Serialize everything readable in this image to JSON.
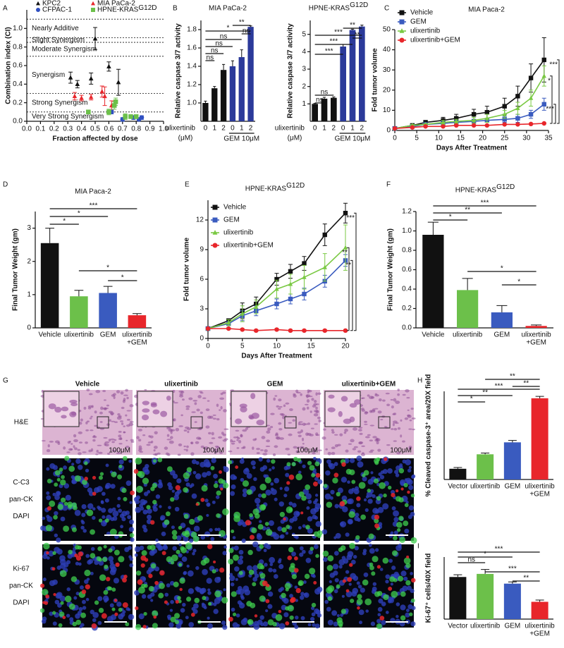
{
  "chart_data": [
    {
      "panel": "A",
      "type": "scatter",
      "xlabel": "Fraction affected by dose",
      "ylabel": "Combination index (CI)",
      "xlim": [
        0,
        1
      ],
      "ylim": [
        0,
        1.2
      ],
      "xticks": [
        {
          "value": 0,
          "label": "0.0"
        },
        0.1,
        0.2,
        0.3,
        0.4,
        0.5,
        0.6,
        0.7,
        0.8,
        0.9,
        {
          "value": 1,
          "label": "1.0"
        }
      ],
      "yticks": [
        {
          "value": 0,
          "label": "0.0"
        },
        0.2,
        0.4,
        0.6,
        0.8,
        {
          "value": 1,
          "label": "1.0"
        }
      ],
      "ref_lines": [
        1.1,
        0.9,
        0.85,
        0.7,
        0.3,
        0.1
      ],
      "ref_labels": [
        "Nearly Additive",
        "Slight Synergism",
        "Moderate Synergism",
        "Synergism",
        "Strong Synergism",
        "Very Strong Synergism"
      ],
      "series": [
        {
          "name": "KPC2",
          "color": "#111111",
          "marker": "triangle",
          "x": [
            0.32,
            0.37,
            0.47,
            0.5,
            0.6,
            0.67
          ],
          "values": [
            0.47,
            0.4,
            0.46,
            0.89,
            0.59,
            0.42
          ],
          "yerr": [
            0.06,
            0.04,
            0.06,
            0.12,
            0.05,
            0.14
          ]
        },
        {
          "name": "MIA PaCa-2",
          "color": "#e8262b",
          "marker": "triangle",
          "x": [
            0.35,
            0.4,
            0.47,
            0.55,
            0.57,
            0.62
          ],
          "values": [
            0.27,
            0.25,
            0.26,
            0.32,
            0.27,
            0.17
          ],
          "yerr": [
            0.04,
            0.03,
            0.03,
            0.06,
            0.1,
            0.05
          ]
        },
        {
          "name": "CFPAC-1",
          "color": "#2f4fc0",
          "marker": "circle",
          "x": [
            0.62,
            0.7,
            0.78,
            0.82,
            0.84
          ],
          "values": [
            0.1,
            0.02,
            0.04,
            0.02,
            0.04
          ],
          "yerr": [
            0.02,
            0.02,
            0.02,
            0.01,
            0.02
          ]
        },
        {
          "name": "HPNE-KRAS",
          "name_superscript": "G12D",
          "color": "#6cc04a",
          "marker": "square",
          "x": [
            0.45,
            0.6,
            0.64,
            0.65,
            0.72,
            0.76,
            0.8
          ],
          "values": [
            0.1,
            0.1,
            0.17,
            0.21,
            0.05,
            0.05,
            0.05
          ],
          "yerr": [
            0.02,
            0.03,
            0.04,
            0.04,
            0.03,
            0.02,
            0.02
          ]
        }
      ]
    },
    {
      "panel": "B",
      "type": "bar",
      "title": "MIA PaCa-2",
      "ylabel": "Relative caspase 3/7 activity",
      "xlabel": "ulixertinib",
      "xlabel_unit": "(μM)",
      "group_label": "GEM 10μM",
      "categories": [
        "0",
        "1",
        "2",
        "0",
        "1",
        "2"
      ],
      "values": [
        1.0,
        1.16,
        1.36,
        1.4,
        1.5,
        1.83
      ],
      "yerr": [
        0.02,
        0.02,
        0.06,
        0.06,
        0.08,
        0.01
      ],
      "colors": [
        "#111111",
        "#111111",
        "#111111",
        "#2b3a9a",
        "#2b3a9a",
        "#2b3a9a"
      ],
      "ylim": [
        0.8,
        1.9
      ],
      "yticks": [
        {
          "value": 1,
          "label": "1.0"
        },
        1.2,
        1.4,
        1.6,
        1.8
      ],
      "annotations": [
        "*",
        "ns",
        "ns",
        "ns",
        "ns",
        "**",
        "ns"
      ]
    },
    {
      "type": "bar",
      "title": "HPNE-KRAS",
      "title_superscript": "G12D",
      "ylabel": "Relative caspase 3/7 activity",
      "xlabel": "ulixertinib",
      "xlabel_unit": "(μM)",
      "group_label": "GEM 10μM",
      "categories": [
        "0",
        "1",
        "2",
        "0",
        "1",
        "2"
      ],
      "values": [
        1.0,
        1.3,
        1.35,
        4.3,
        5.25,
        5.45
      ],
      "yerr": [
        0.03,
        0.08,
        0.05,
        0.12,
        0.05,
        0.08
      ],
      "colors": [
        "#111111",
        "#111111",
        "#111111",
        "#2b3a9a",
        "#2b3a9a",
        "#2b3a9a"
      ],
      "ylim": [
        0,
        5.8
      ],
      "yticks": [
        1,
        2,
        3,
        4,
        5
      ],
      "annotations": [
        "***",
        "***",
        "***",
        "**",
        "**",
        "ns",
        "ns"
      ]
    },
    {
      "panel": "C",
      "type": "line",
      "title": "MIA Paca-2",
      "xlabel": "Days After Treatment",
      "ylabel": "Fold tumor volume",
      "xlim": [
        0,
        35
      ],
      "ylim": [
        0,
        50
      ],
      "xticks": [
        0,
        5,
        10,
        15,
        20,
        25,
        30,
        35
      ],
      "yticks": [
        0,
        10,
        20,
        30,
        40,
        50
      ],
      "x": [
        0,
        4,
        7,
        11,
        14,
        18,
        21,
        25,
        28,
        31,
        34
      ],
      "series": [
        {
          "name": "Vehicle",
          "color": "#111111",
          "marker": "square",
          "values": [
            1,
            2.5,
            4,
            5,
            6,
            8,
            9,
            12,
            17,
            26,
            35
          ],
          "yerr": [
            0,
            0.5,
            1,
            1.5,
            2,
            2.5,
            3,
            4,
            5,
            7,
            11
          ]
        },
        {
          "name": "GEM",
          "color": "#3a5bbf",
          "marker": "square",
          "values": [
            1,
            2,
            3,
            3.5,
            4,
            4.5,
            5,
            5.5,
            6,
            8,
            13
          ],
          "yerr": [
            0,
            0.5,
            0.5,
            1,
            1,
            1,
            1,
            1.5,
            2,
            2,
            3
          ]
        },
        {
          "name": "ulixertinib",
          "color": "#7ac943",
          "marker": "triangle",
          "values": [
            1,
            2.5,
            3,
            4,
            4.5,
            5,
            6,
            8,
            11,
            16,
            27
          ],
          "yerr": [
            0,
            0.5,
            0.5,
            1,
            1,
            1.5,
            2,
            2,
            3,
            4,
            5
          ]
        },
        {
          "name": "ulixertinib+GEM",
          "color": "#e8262b",
          "marker": "circle",
          "values": [
            1,
            1.5,
            2,
            2,
            2.5,
            2.5,
            2.5,
            3,
            3,
            3.2,
            3.5
          ],
          "yerr": [
            0,
            0.3,
            0.3,
            0.3,
            0.3,
            0.3,
            0.3,
            0.3,
            0.3,
            0.3,
            0.3
          ]
        }
      ],
      "annotations": [
        "***",
        "***",
        "*"
      ]
    },
    {
      "panel": "D",
      "type": "bar",
      "title": "MIA Paca-2",
      "ylabel": "Final Tumor Weight (gm)",
      "categories": [
        "Vehicle",
        "ulixertinib",
        "GEM",
        [
          "ulixertinib",
          "+GEM"
        ]
      ],
      "values": [
        2.55,
        0.95,
        1.05,
        0.38
      ],
      "yerr": [
        0.45,
        0.18,
        0.2,
        0.05
      ],
      "colors": [
        "#111111",
        "#6cc04a",
        "#3a5bbf",
        "#e8262b"
      ],
      "ylim": [
        0,
        3.5
      ],
      "yticks": [
        0,
        1,
        2,
        3
      ],
      "annotations": [
        "***",
        "*",
        "*",
        "*",
        "*"
      ]
    },
    {
      "panel": "E",
      "type": "line",
      "title": "HPNE-KRAS",
      "title_superscript": "G12D",
      "xlabel": "Days After Treatment",
      "ylabel": "Fold tumor volume",
      "xlim": [
        0,
        20
      ],
      "ylim": [
        0,
        14
      ],
      "xticks": [
        0,
        5,
        10,
        15,
        20
      ],
      "yticks": [
        0,
        3,
        6,
        9,
        12
      ],
      "x": [
        0,
        3,
        5,
        7,
        10,
        12,
        14,
        17,
        20
      ],
      "series": [
        {
          "name": "Vehicle",
          "color": "#111111",
          "marker": "square",
          "values": [
            1,
            1.8,
            2.8,
            3.5,
            6,
            6.8,
            7.6,
            10.5,
            12.7
          ],
          "yerr": [
            0,
            0.2,
            0.8,
            0.7,
            0.6,
            0.7,
            0.7,
            1.1,
            1
          ]
        },
        {
          "name": "GEM",
          "color": "#3a5bbf",
          "marker": "square",
          "values": [
            1,
            1.5,
            2.3,
            2.8,
            3.5,
            4,
            4.5,
            5.8,
            7.9
          ],
          "yerr": [
            0,
            0.2,
            0.5,
            0.5,
            0.5,
            0.5,
            0.6,
            0.6,
            0.6
          ]
        },
        {
          "name": "ulixertinib",
          "color": "#7ac943",
          "marker": "triangle",
          "values": [
            1,
            1.6,
            2.5,
            3.2,
            5,
            5.5,
            6.2,
            7.2,
            9.2
          ],
          "yerr": [
            0,
            0.3,
            0.8,
            0.7,
            0.9,
            1.0,
            1.2,
            1.4,
            2.3
          ]
        },
        {
          "name": "ulixertinib+GEM",
          "color": "#e8262b",
          "marker": "circle",
          "values": [
            1,
            1,
            0.9,
            0.8,
            0.9,
            0.8,
            0.8,
            0.8,
            0.8
          ],
          "yerr": [
            0,
            0.1,
            0.1,
            0.1,
            0.1,
            0.1,
            0.1,
            0.1,
            0.1
          ]
        }
      ],
      "annotations": [
        "***",
        "**",
        "**"
      ]
    },
    {
      "panel": "F",
      "type": "bar",
      "title": "HPNE-KRAS",
      "title_superscript": "G12D",
      "ylabel": "Final Tumor Weight  (gm)",
      "categories": [
        "Vehicle",
        "ulixertinib",
        "GEM",
        [
          "ulixertinib",
          "+GEM"
        ]
      ],
      "values": [
        0.96,
        0.39,
        0.16,
        0.02
      ],
      "yerr": [
        0.13,
        0.12,
        0.07,
        0.01
      ],
      "colors": [
        "#111111",
        "#6cc04a",
        "#3a5bbf",
        "#e8262b"
      ],
      "ylim": [
        0,
        1.2
      ],
      "yticks": [
        {
          "value": 0,
          "label": "0.0"
        },
        0.2,
        0.4,
        0.6,
        0.8,
        {
          "value": 1,
          "label": "1.0"
        },
        1.2
      ],
      "annotations": [
        "***",
        "**",
        "*",
        "*",
        "*"
      ]
    },
    {
      "panel": "H",
      "type": "bar",
      "ylabel": "% Cleaved caspase-3⁺ area/20X field",
      "categories": [
        "Vector",
        "ulixertinib",
        "GEM",
        [
          "ulixertinib",
          "+GEM"
        ]
      ],
      "values": [
        0.17,
        0.4,
        0.59,
        1.29
      ],
      "yerr": [
        0.02,
        0.02,
        0.03,
        0.03
      ],
      "colors": [
        "#111111",
        "#6cc04a",
        "#3a5bbf",
        "#e8262b"
      ],
      "ylim": [
        0,
        1.4
      ],
      "annotations": [
        "***",
        "**",
        "*",
        "**",
        "**"
      ]
    },
    {
      "panel": "I",
      "type": "bar",
      "ylabel": "Ki-67⁺ cells/40X field",
      "categories": [
        "Vector",
        "ulixertinib",
        "GEM",
        [
          "ulixertinib",
          "+GEM"
        ]
      ],
      "values": [
        95,
        102,
        80,
        39
      ],
      "yerr": [
        5,
        10,
        4,
        4
      ],
      "colors": [
        "#111111",
        "#6cc04a",
        "#3a5bbf",
        "#e8262b"
      ],
      "ylim": [
        0,
        140
      ],
      "annotations": [
        "***",
        "*",
        "ns",
        "***",
        "**"
      ]
    }
  ],
  "panel_g": {
    "panel": "G",
    "columns": [
      "Vehicle",
      "ulixertinib",
      "GEM",
      "ulixertinib+GEM"
    ],
    "rows": [
      [
        "H&E"
      ],
      [
        "C-C3",
        "pan-CK",
        "DAPI"
      ],
      [
        "Ki-67",
        "pan-CK",
        "DAPI"
      ]
    ],
    "scale_label": "100μM"
  }
}
